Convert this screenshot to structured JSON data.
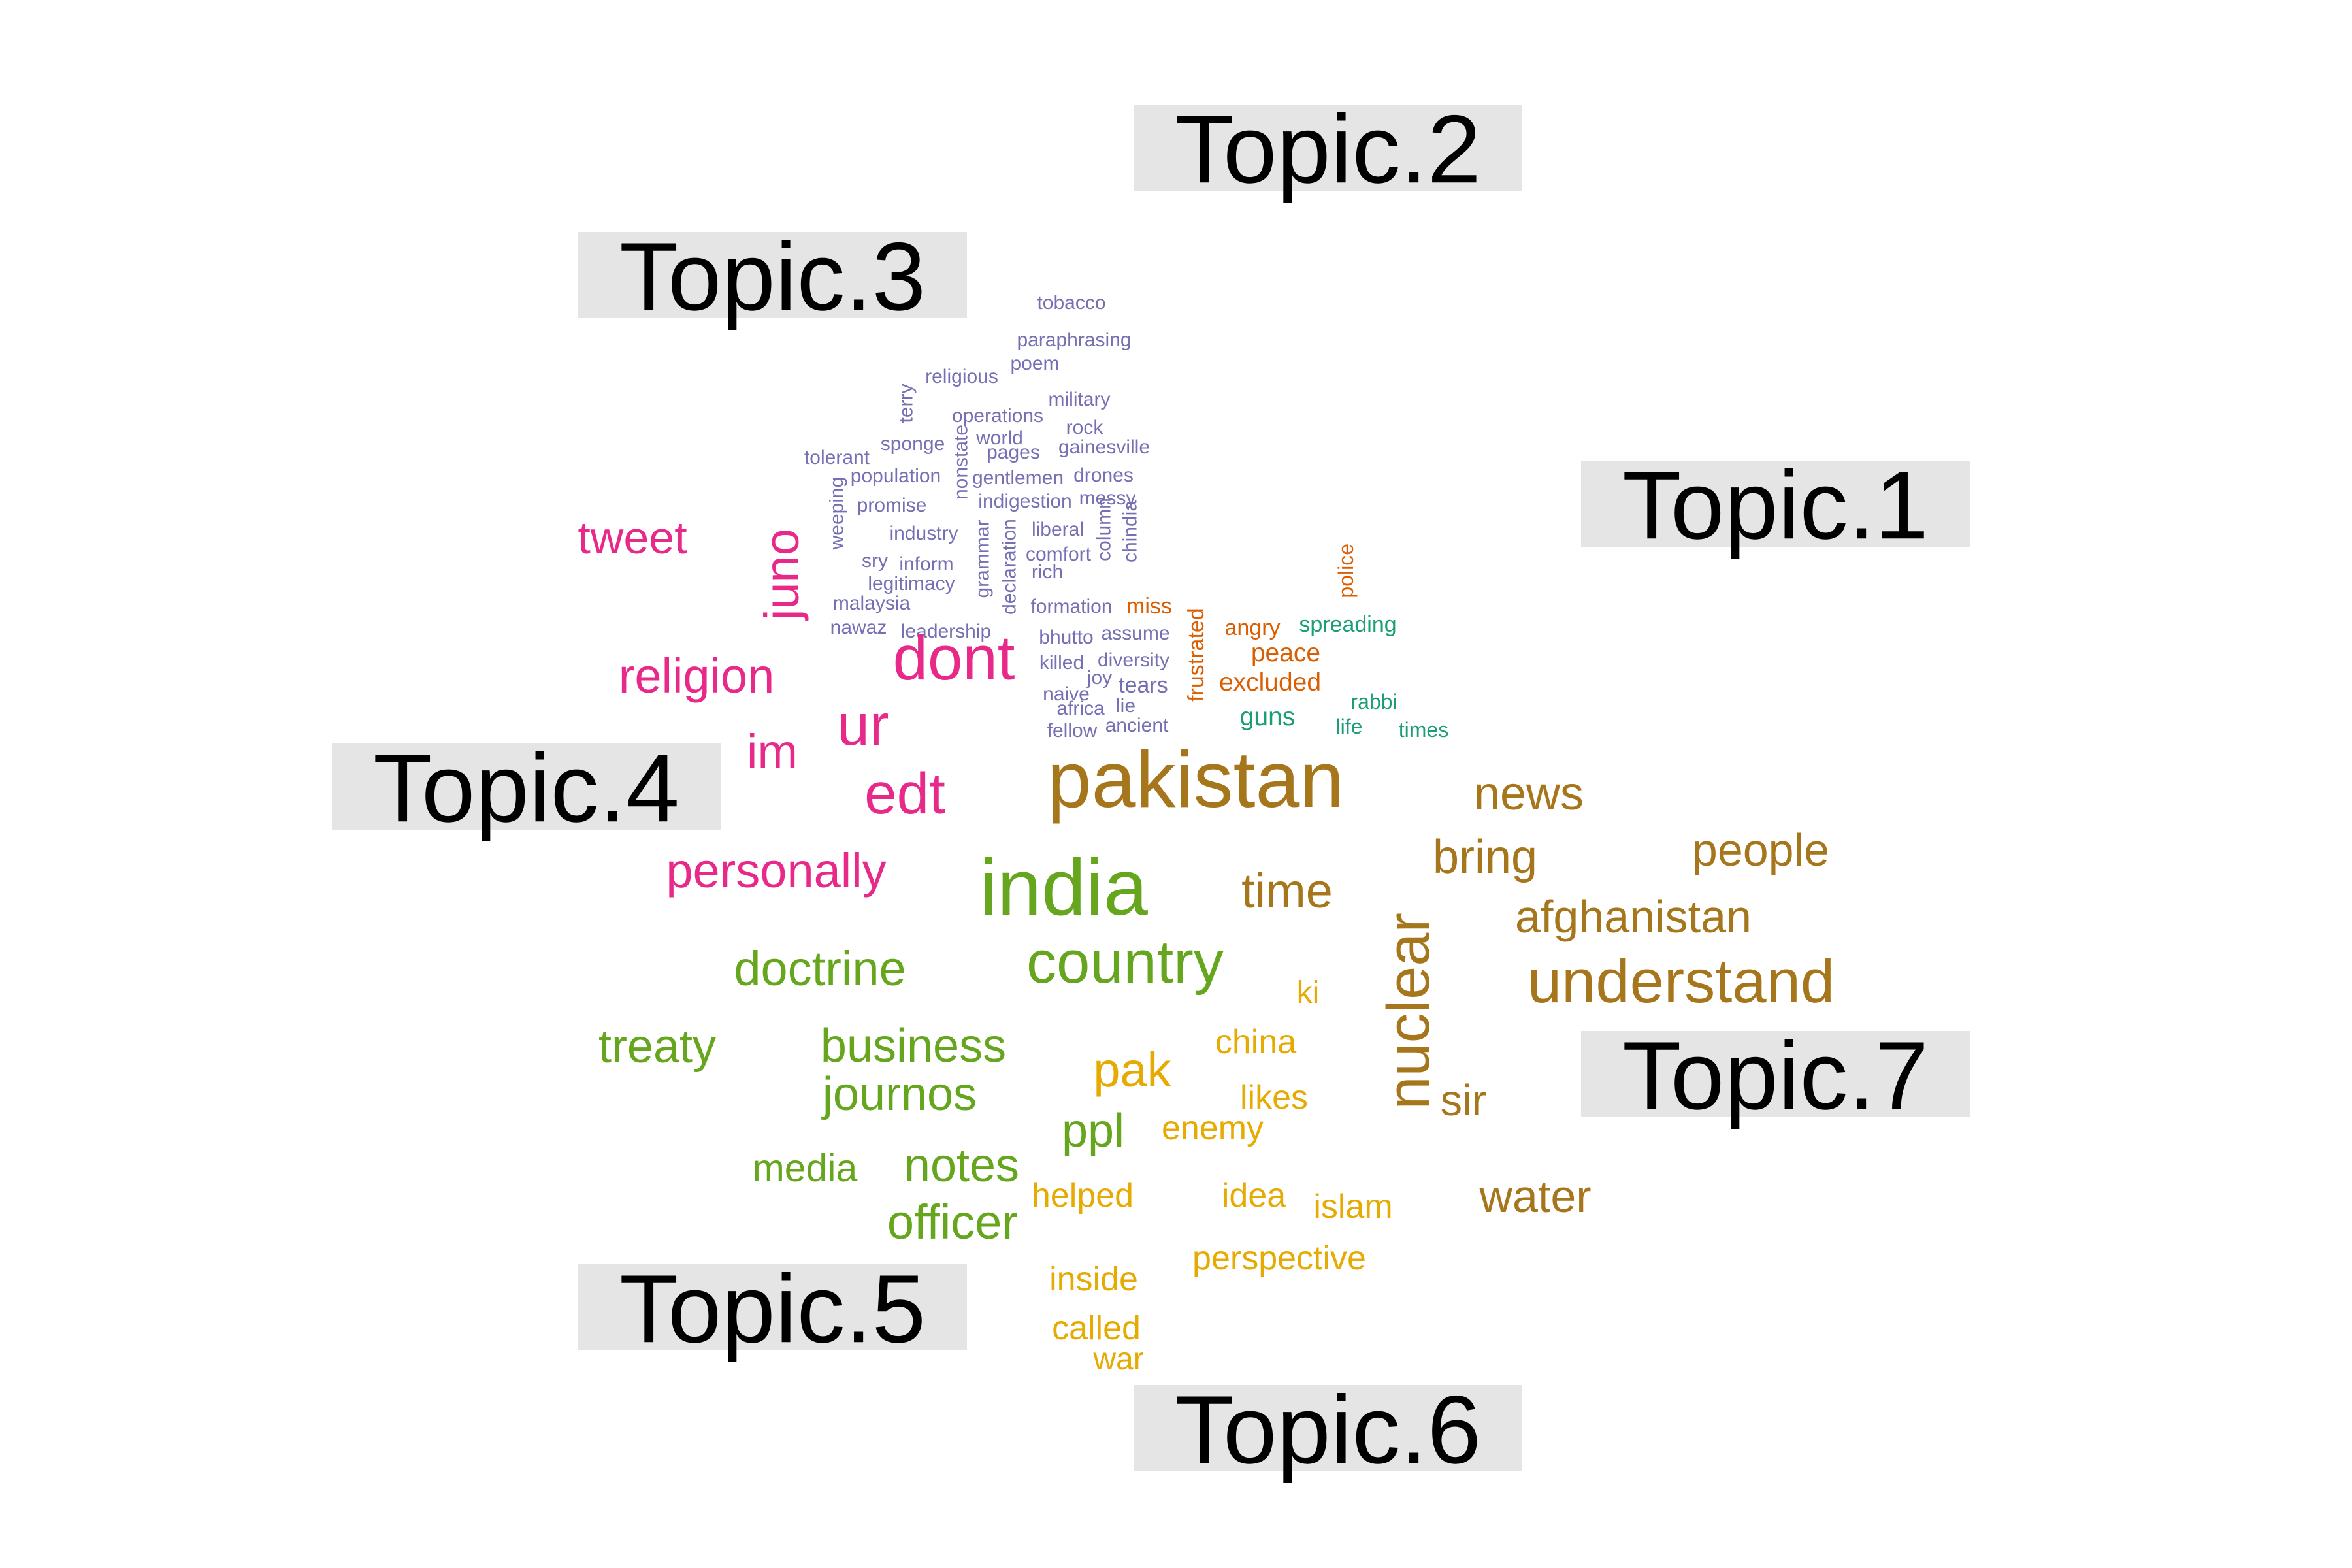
{
  "topics": [
    {
      "label": "Topic.1"
    },
    {
      "label": "Topic.2"
    },
    {
      "label": "Topic.3"
    },
    {
      "label": "Topic.4"
    },
    {
      "label": "Topic.5"
    },
    {
      "label": "Topic.6"
    },
    {
      "label": "Topic.7"
    }
  ],
  "colors": {
    "Topic.1": "#1b9e77",
    "Topic.2": "#d95f02",
    "Topic.3": "#7570b3",
    "Topic.4": "#e7298a",
    "Topic.5": "#66a61e",
    "Topic.6": "#e6ab02",
    "Topic.7": "#a6761d",
    "label_box": "#e5e5e5",
    "label_text": "#000000"
  },
  "words": [
    {
      "text": "tobacco",
      "topic": "Topic.3",
      "weight": 1
    },
    {
      "text": "paraphrasing",
      "topic": "Topic.3",
      "weight": 1
    },
    {
      "text": "poem",
      "topic": "Topic.3",
      "weight": 1
    },
    {
      "text": "religious",
      "topic": "Topic.3",
      "weight": 1
    },
    {
      "text": "military",
      "topic": "Topic.3",
      "weight": 1
    },
    {
      "text": "terry",
      "topic": "Topic.3",
      "weight": 1
    },
    {
      "text": "operations",
      "topic": "Topic.3",
      "weight": 1
    },
    {
      "text": "rock",
      "topic": "Topic.3",
      "weight": 1
    },
    {
      "text": "sponge",
      "topic": "Topic.3",
      "weight": 1
    },
    {
      "text": "world",
      "topic": "Topic.3",
      "weight": 1
    },
    {
      "text": "gainesville",
      "topic": "Topic.3",
      "weight": 1
    },
    {
      "text": "tolerant",
      "topic": "Topic.3",
      "weight": 1
    },
    {
      "text": "pages",
      "topic": "Topic.3",
      "weight": 1
    },
    {
      "text": "nonstate",
      "topic": "Topic.3",
      "weight": 1
    },
    {
      "text": "population",
      "topic": "Topic.3",
      "weight": 1
    },
    {
      "text": "gentlemen",
      "topic": "Topic.3",
      "weight": 1
    },
    {
      "text": "drones",
      "topic": "Topic.3",
      "weight": 1
    },
    {
      "text": "promise",
      "topic": "Topic.3",
      "weight": 1
    },
    {
      "text": "indigestion",
      "topic": "Topic.3",
      "weight": 1
    },
    {
      "text": "messy",
      "topic": "Topic.3",
      "weight": 1
    },
    {
      "text": "weeping",
      "topic": "Topic.3",
      "weight": 1
    },
    {
      "text": "industry",
      "topic": "Topic.3",
      "weight": 1
    },
    {
      "text": "liberal",
      "topic": "Topic.3",
      "weight": 1
    },
    {
      "text": "column",
      "topic": "Topic.3",
      "weight": 1
    },
    {
      "text": "chindia",
      "topic": "Topic.3",
      "weight": 1
    },
    {
      "text": "grammar",
      "topic": "Topic.3",
      "weight": 1
    },
    {
      "text": "declaration",
      "topic": "Topic.3",
      "weight": 1
    },
    {
      "text": "comfort",
      "topic": "Topic.3",
      "weight": 1
    },
    {
      "text": "sry",
      "topic": "Topic.3",
      "weight": 1
    },
    {
      "text": "inform",
      "topic": "Topic.3",
      "weight": 1
    },
    {
      "text": "rich",
      "topic": "Topic.3",
      "weight": 1
    },
    {
      "text": "legitimacy",
      "topic": "Topic.3",
      "weight": 1
    },
    {
      "text": "malaysia",
      "topic": "Topic.3",
      "weight": 1
    },
    {
      "text": "formation",
      "topic": "Topic.3",
      "weight": 1
    },
    {
      "text": "nawaz",
      "topic": "Topic.3",
      "weight": 1
    },
    {
      "text": "leadership",
      "topic": "Topic.3",
      "weight": 1
    },
    {
      "text": "bhutto",
      "topic": "Topic.3",
      "weight": 1
    },
    {
      "text": "assume",
      "topic": "Topic.3",
      "weight": 1
    },
    {
      "text": "killed",
      "topic": "Topic.3",
      "weight": 1
    },
    {
      "text": "diversity",
      "topic": "Topic.3",
      "weight": 1
    },
    {
      "text": "joy",
      "topic": "Topic.3",
      "weight": 1
    },
    {
      "text": "tears",
      "topic": "Topic.3",
      "weight": 1.2
    },
    {
      "text": "naive",
      "topic": "Topic.3",
      "weight": 1
    },
    {
      "text": "africa",
      "topic": "Topic.3",
      "weight": 1
    },
    {
      "text": "lie",
      "topic": "Topic.3",
      "weight": 1
    },
    {
      "text": "fellow",
      "topic": "Topic.3",
      "weight": 1
    },
    {
      "text": "ancient",
      "topic": "Topic.3",
      "weight": 1
    },
    {
      "text": "miss",
      "topic": "Topic.2",
      "weight": 1.2
    },
    {
      "text": "frustrated",
      "topic": "Topic.2",
      "weight": 1.2
    },
    {
      "text": "angry",
      "topic": "Topic.2",
      "weight": 1.2
    },
    {
      "text": "peace",
      "topic": "Topic.2",
      "weight": 1.4
    },
    {
      "text": "excluded",
      "topic": "Topic.2",
      "weight": 1.4
    },
    {
      "text": "police",
      "topic": "Topic.2",
      "weight": 1.1
    },
    {
      "text": "spreading",
      "topic": "Topic.1",
      "weight": 1.2
    },
    {
      "text": "rabbi",
      "topic": "Topic.1",
      "weight": 1.1
    },
    {
      "text": "guns",
      "topic": "Topic.1",
      "weight": 1.4
    },
    {
      "text": "life",
      "topic": "Topic.1",
      "weight": 1.1
    },
    {
      "text": "times",
      "topic": "Topic.1",
      "weight": 1.1
    },
    {
      "text": "tweet",
      "topic": "Topic.4",
      "weight": 2.8
    },
    {
      "text": "juno",
      "topic": "Topic.4",
      "weight": 3
    },
    {
      "text": "religion",
      "topic": "Topic.4",
      "weight": 3
    },
    {
      "text": "dont",
      "topic": "Topic.4",
      "weight": 4
    },
    {
      "text": "ur",
      "topic": "Topic.4",
      "weight": 3.7
    },
    {
      "text": "im",
      "topic": "Topic.4",
      "weight": 3
    },
    {
      "text": "edt",
      "topic": "Topic.4",
      "weight": 3.7
    },
    {
      "text": "personally",
      "topic": "Topic.4",
      "weight": 3
    },
    {
      "text": "pakistan",
      "topic": "Topic.7",
      "weight": 5.2
    },
    {
      "text": "news",
      "topic": "Topic.7",
      "weight": 2.9
    },
    {
      "text": "bring",
      "topic": "Topic.7",
      "weight": 2.9
    },
    {
      "text": "people",
      "topic": "Topic.7",
      "weight": 2.8
    },
    {
      "text": "afghanistan",
      "topic": "Topic.7",
      "weight": 2.8
    },
    {
      "text": "understand",
      "topic": "Topic.7",
      "weight": 3.9
    },
    {
      "text": "nuclear",
      "topic": "Topic.7",
      "weight": 3.8
    },
    {
      "text": "time",
      "topic": "Topic.7",
      "weight": 3
    },
    {
      "text": "sir",
      "topic": "Topic.7",
      "weight": 2.7
    },
    {
      "text": "water",
      "topic": "Topic.7",
      "weight": 2.8
    },
    {
      "text": "india",
      "topic": "Topic.5",
      "weight": 5.2
    },
    {
      "text": "country",
      "topic": "Topic.5",
      "weight": 3.8
    },
    {
      "text": "doctrine",
      "topic": "Topic.5",
      "weight": 3
    },
    {
      "text": "treaty",
      "topic": "Topic.5",
      "weight": 2.9
    },
    {
      "text": "business",
      "topic": "Topic.5",
      "weight": 2.9
    },
    {
      "text": "journos",
      "topic": "Topic.5",
      "weight": 2.9
    },
    {
      "text": "media",
      "topic": "Topic.5",
      "weight": 2.3
    },
    {
      "text": "notes",
      "topic": "Topic.5",
      "weight": 2.9
    },
    {
      "text": "ppl",
      "topic": "Topic.5",
      "weight": 2.9
    },
    {
      "text": "officer",
      "topic": "Topic.5",
      "weight": 3
    },
    {
      "text": "pak",
      "topic": "Topic.6",
      "weight": 3
    },
    {
      "text": "ki",
      "topic": "Topic.6",
      "weight": 1.8
    },
    {
      "text": "china",
      "topic": "Topic.6",
      "weight": 2
    },
    {
      "text": "likes",
      "topic": "Topic.6",
      "weight": 2
    },
    {
      "text": "enemy",
      "topic": "Topic.6",
      "weight": 2
    },
    {
      "text": "helped",
      "topic": "Topic.6",
      "weight": 2
    },
    {
      "text": "idea",
      "topic": "Topic.6",
      "weight": 2
    },
    {
      "text": "islam",
      "topic": "Topic.6",
      "weight": 2
    },
    {
      "text": "perspective",
      "topic": "Topic.6",
      "weight": 2
    },
    {
      "text": "inside",
      "topic": "Topic.6",
      "weight": 2
    },
    {
      "text": "called",
      "topic": "Topic.6",
      "weight": 2
    },
    {
      "text": "war",
      "topic": "Topic.6",
      "weight": 1.8
    }
  ]
}
